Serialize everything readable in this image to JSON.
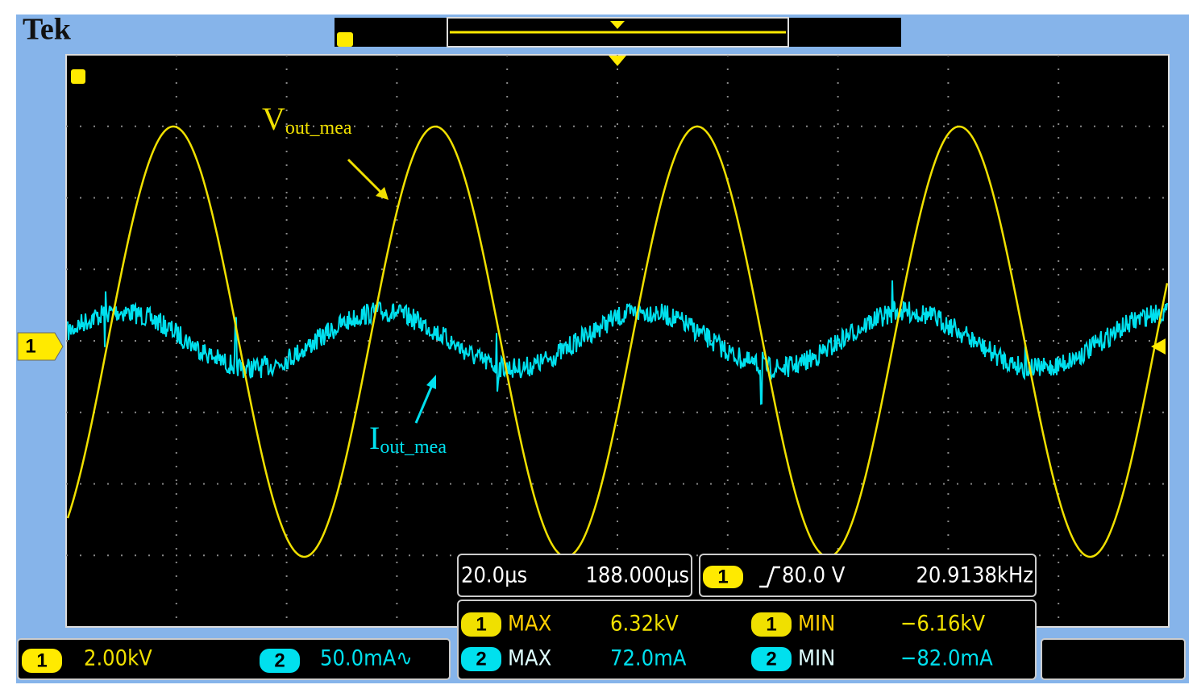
{
  "header": {
    "brand": "Tek"
  },
  "annotations": {
    "vout": {
      "main": "V",
      "sub": "out_mea"
    },
    "iout": {
      "main": "I",
      "sub": "out_mea"
    }
  },
  "channel_marker": "1",
  "status": {
    "ch1": {
      "badge": "1",
      "scale": "2.00kV"
    },
    "ch2": {
      "badge": "2",
      "scale": "50.0mA∿"
    }
  },
  "timebase": {
    "scale": "20.0µs",
    "position": "188.000µs"
  },
  "trigger": {
    "badge": "1",
    "level": "80.0 V",
    "frequency": "20.9138kHz"
  },
  "measurements": [
    {
      "channel": "1",
      "type": "MAX",
      "value": "6.32kV"
    },
    {
      "channel": "1",
      "type": "MIN",
      "value": "−6.16kV"
    },
    {
      "channel": "2",
      "type": "MAX",
      "value": "72.0mA"
    },
    {
      "channel": "2",
      "type": "MIN",
      "value": "−82.0mA"
    }
  ]
}
